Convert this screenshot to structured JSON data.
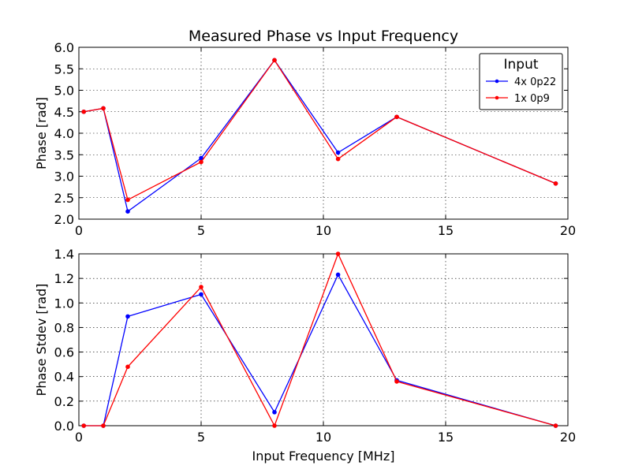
{
  "chart_data": [
    {
      "type": "line",
      "title": "Measured Phase vs Input Frequency",
      "xlabel": "",
      "ylabel": "Phase [rad]",
      "xlim": [
        0,
        20
      ],
      "ylim": [
        2.0,
        6.0
      ],
      "xticks": [
        0,
        5,
        10,
        15,
        20
      ],
      "xtick_labels": [
        "0",
        "5",
        "10",
        "15",
        "20"
      ],
      "yticks": [
        2.0,
        2.5,
        3.0,
        3.5,
        4.0,
        4.5,
        5.0,
        5.5,
        6.0
      ],
      "ytick_labels": [
        "2.0",
        "2.5",
        "3.0",
        "3.5",
        "4.0",
        "4.5",
        "5.0",
        "5.5",
        "6.0"
      ],
      "grid": true,
      "legend": {
        "title": "Input",
        "placement": "top-right"
      },
      "x": [
        0.2,
        1.0,
        2.0,
        5.0,
        8.0,
        10.6,
        13.0,
        19.5
      ],
      "series": [
        {
          "name": "4x 0p22",
          "color": "#0000ff",
          "values": [
            4.5,
            4.58,
            2.18,
            3.42,
            5.7,
            3.55,
            4.38,
            2.83
          ]
        },
        {
          "name": "1x 0p9",
          "color": "#ff0000",
          "values": [
            4.5,
            4.58,
            2.45,
            3.33,
            5.7,
            3.4,
            4.38,
            2.83
          ]
        }
      ]
    },
    {
      "type": "line",
      "title": "",
      "xlabel": "Input Frequency [MHz]",
      "ylabel": "Phase Stdev [rad]",
      "xlim": [
        0,
        20
      ],
      "ylim": [
        0.0,
        1.4
      ],
      "xticks": [
        0,
        5,
        10,
        15,
        20
      ],
      "xtick_labels": [
        "0",
        "5",
        "10",
        "15",
        "20"
      ],
      "yticks": [
        0.0,
        0.2,
        0.4,
        0.6,
        0.8,
        1.0,
        1.2,
        1.4
      ],
      "ytick_labels": [
        "0.0",
        "0.2",
        "0.4",
        "0.6",
        "0.8",
        "1.0",
        "1.2",
        "1.4"
      ],
      "grid": true,
      "x": [
        0.2,
        1.0,
        2.0,
        5.0,
        8.0,
        10.6,
        13.0,
        19.5
      ],
      "series": [
        {
          "name": "4x 0p22",
          "color": "#0000ff",
          "values": [
            0.0,
            0.0,
            0.89,
            1.07,
            0.11,
            1.23,
            0.37,
            0.0
          ]
        },
        {
          "name": "1x 0p9",
          "color": "#ff0000",
          "values": [
            0.0,
            0.0,
            0.48,
            1.13,
            0.0,
            1.4,
            0.36,
            0.0
          ]
        }
      ]
    }
  ]
}
